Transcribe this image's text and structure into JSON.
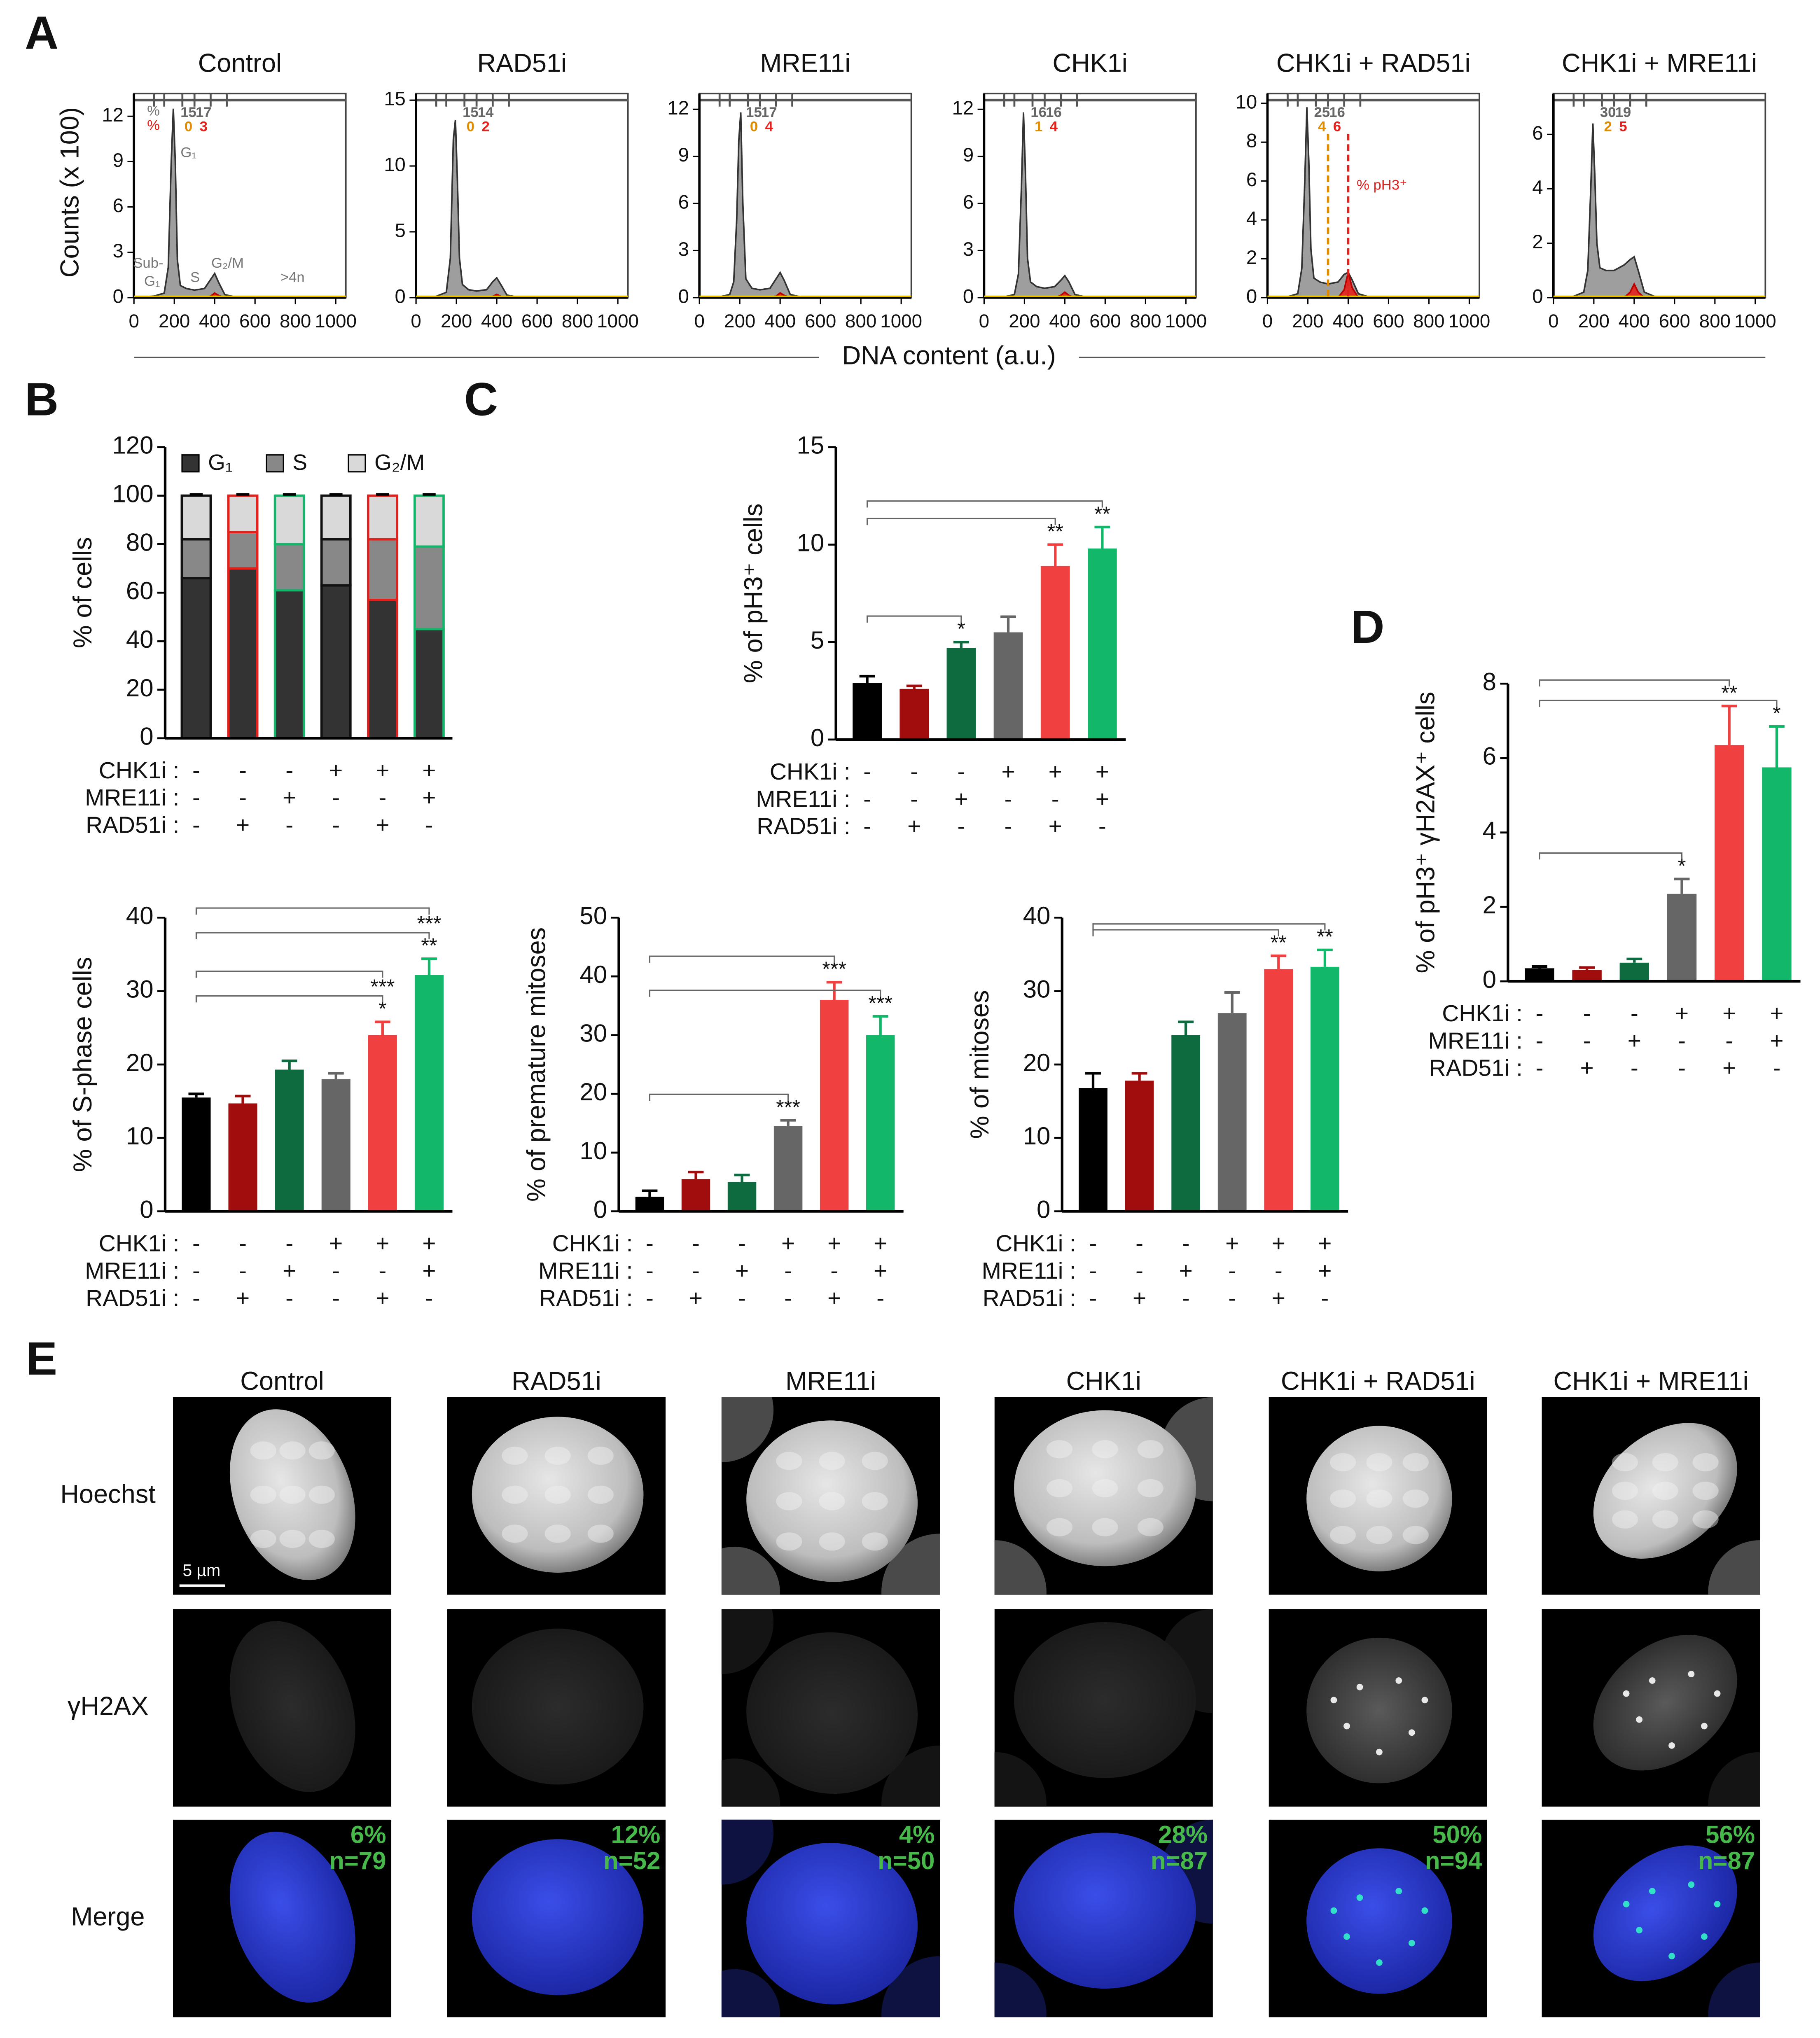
{
  "panel_labels": [
    "A",
    "B",
    "C",
    "D",
    "E"
  ],
  "chart_data": [
    {
      "type": "area",
      "title": "Control",
      "ylabel": "Counts (x 100)",
      "xlabel": "DNA content (a.u.)",
      "x": [
        0,
        100,
        150,
        170,
        185,
        195,
        205,
        215,
        230,
        260,
        300,
        350,
        380,
        400,
        420,
        450,
        500,
        600,
        800,
        1000
      ],
      "xlim": [
        0,
        1050
      ],
      "xticks": [
        0,
        200,
        400,
        600,
        800,
        1000
      ],
      "ylim": [
        0,
        13.5
      ],
      "yticks": [
        0,
        3,
        6,
        9,
        12
      ],
      "series": [
        {
          "color": "#9e9e9e",
          "values": [
            0,
            0.1,
            0.3,
            2,
            9,
            12.5,
            9,
            2.5,
            0.8,
            0.6,
            0.5,
            0.6,
            1.2,
            1.6,
            1,
            0.2,
            0.05,
            0.02,
            0.01,
            0
          ]
        },
        {
          "color": "#e3201b",
          "values": [
            0,
            0,
            0,
            0,
            0,
            0,
            0,
            0,
            0,
            0,
            0,
            0,
            0.1,
            0.3,
            0.15,
            0,
            0,
            0,
            0,
            0
          ]
        }
      ],
      "gate_labels": [
        15,
        17
      ],
      "gate_colored": [
        0,
        3
      ],
      "annotations": [
        "%",
        "%",
        "G₁",
        "Sub-",
        "G₁",
        "S",
        "G₂/M",
        ">4n"
      ]
    },
    {
      "type": "area",
      "title": "RAD51i",
      "x": [
        0,
        100,
        150,
        170,
        185,
        195,
        205,
        215,
        230,
        260,
        300,
        350,
        380,
        400,
        420,
        450,
        500,
        600,
        800,
        1000
      ],
      "xlim": [
        0,
        1050
      ],
      "xticks": [
        0,
        200,
        400,
        600,
        800,
        1000
      ],
      "ylim": [
        0,
        15.5
      ],
      "yticks": [
        0,
        5,
        10,
        15
      ],
      "series": [
        {
          "color": "#9e9e9e",
          "values": [
            0,
            0.1,
            0.4,
            3,
            12,
            13.5,
            9,
            3,
            1,
            0.6,
            0.5,
            0.6,
            1.2,
            1.5,
            1,
            0.2,
            0.05,
            0.02,
            0.01,
            0
          ]
        },
        {
          "color": "#e3201b",
          "values": [
            0,
            0,
            0,
            0,
            0,
            0,
            0,
            0,
            0,
            0,
            0,
            0,
            0.1,
            0.25,
            0.1,
            0,
            0,
            0,
            0,
            0
          ]
        }
      ],
      "gate_labels": [
        15,
        14
      ],
      "gate_colored": [
        0,
        2
      ]
    },
    {
      "type": "area",
      "title": "MRE11i",
      "x": [
        0,
        100,
        150,
        170,
        185,
        195,
        205,
        215,
        230,
        260,
        300,
        350,
        380,
        400,
        420,
        450,
        500,
        600,
        800,
        1000
      ],
      "xlim": [
        0,
        1050
      ],
      "xticks": [
        0,
        200,
        400,
        600,
        800,
        1000
      ],
      "ylim": [
        0,
        13
      ],
      "yticks": [
        0,
        3,
        6,
        9,
        12
      ],
      "series": [
        {
          "color": "#9e9e9e",
          "values": [
            0,
            0.05,
            0.2,
            1,
            5,
            10,
            11.8,
            6,
            1.2,
            0.6,
            0.5,
            0.6,
            1.2,
            1.6,
            1.1,
            0.2,
            0.05,
            0.02,
            0.01,
            0
          ]
        },
        {
          "color": "#e3201b",
          "values": [
            0,
            0,
            0,
            0,
            0,
            0,
            0,
            0,
            0,
            0,
            0,
            0,
            0.1,
            0.3,
            0.15,
            0,
            0,
            0,
            0,
            0
          ]
        }
      ],
      "gate_labels": [
        15,
        17
      ],
      "gate_colored": [
        0,
        4
      ]
    },
    {
      "type": "area",
      "title": "CHK1i",
      "x": [
        0,
        100,
        150,
        170,
        185,
        195,
        205,
        215,
        230,
        260,
        300,
        350,
        380,
        400,
        420,
        450,
        500,
        600,
        800,
        1000
      ],
      "xlim": [
        0,
        1050
      ],
      "xticks": [
        0,
        200,
        400,
        600,
        800,
        1000
      ],
      "ylim": [
        0,
        13
      ],
      "yticks": [
        0,
        3,
        6,
        9,
        12
      ],
      "series": [
        {
          "color": "#9e9e9e",
          "values": [
            0,
            0.05,
            0.2,
            1.5,
            7,
            11.8,
            8,
            2.5,
            1,
            0.7,
            0.6,
            0.7,
            1.1,
            1.4,
            1,
            0.2,
            0.05,
            0.02,
            0.01,
            0
          ]
        },
        {
          "color": "#e3201b",
          "values": [
            0,
            0,
            0,
            0,
            0,
            0,
            0,
            0,
            0,
            0,
            0,
            0,
            0.15,
            0.35,
            0.15,
            0,
            0,
            0,
            0,
            0
          ]
        }
      ],
      "gate_labels": [
        16,
        16
      ],
      "gate_colored": [
        1,
        4
      ]
    },
    {
      "type": "area",
      "title": "CHK1i + RAD51i",
      "x": [
        0,
        100,
        150,
        170,
        185,
        195,
        205,
        215,
        230,
        260,
        300,
        350,
        380,
        400,
        420,
        450,
        500,
        600,
        800,
        1000
      ],
      "xlim": [
        0,
        1050
      ],
      "xticks": [
        0,
        200,
        400,
        600,
        800,
        1000
      ],
      "ylim": [
        0,
        10.5
      ],
      "yticks": [
        0,
        2,
        4,
        6,
        8,
        10
      ],
      "series": [
        {
          "color": "#9e9e9e",
          "values": [
            0,
            0.05,
            0.2,
            1.5,
            6,
            9.8,
            7,
            2.5,
            1,
            0.8,
            0.7,
            0.8,
            1.2,
            1.3,
            0.9,
            0.2,
            0.05,
            0.02,
            0.01,
            0
          ]
        },
        {
          "color": "#e3201b",
          "values": [
            0,
            0,
            0,
            0,
            0,
            0,
            0,
            0,
            0,
            0,
            0,
            0,
            0.4,
            1.3,
            0.5,
            0,
            0,
            0,
            0,
            0
          ]
        }
      ],
      "gate_labels": [
        25,
        16
      ],
      "gate_colored": [
        4,
        6
      ],
      "annotations": [
        "% pH3⁺"
      ]
    },
    {
      "type": "area",
      "title": "CHK1i + MRE11i",
      "x": [
        0,
        100,
        150,
        170,
        185,
        195,
        205,
        215,
        230,
        260,
        300,
        350,
        380,
        400,
        420,
        450,
        500,
        600,
        800,
        1000
      ],
      "xlim": [
        0,
        1050
      ],
      "xticks": [
        0,
        200,
        400,
        600,
        800,
        1000
      ],
      "ylim": [
        0,
        7.5
      ],
      "yticks": [
        0,
        2,
        4,
        6
      ],
      "series": [
        {
          "color": "#9e9e9e",
          "values": [
            0,
            0.05,
            0.2,
            1,
            4,
            6.4,
            4.5,
            2,
            1.1,
            1,
            1,
            1.2,
            1.4,
            1.5,
            1,
            0.2,
            0.05,
            0.02,
            0.01,
            0
          ]
        },
        {
          "color": "#e3201b",
          "values": [
            0,
            0,
            0,
            0,
            0,
            0,
            0,
            0,
            0,
            0,
            0,
            0,
            0.2,
            0.5,
            0.2,
            0,
            0,
            0,
            0,
            0
          ]
        }
      ],
      "gate_labels": [
        30,
        19
      ],
      "gate_colored": [
        2,
        5
      ]
    },
    {
      "type": "stacked_bar",
      "ylabel": "% of cells",
      "ylim": [
        0,
        120
      ],
      "yticks": [
        0,
        20,
        40,
        60,
        80,
        100,
        120
      ],
      "outline_colors": [
        "#111111",
        "#e3201b",
        "#12b76a",
        "#111111",
        "#e3201b",
        "#12b76a"
      ],
      "series": [
        {
          "name": "G₁",
          "color": "#333333",
          "values": [
            66,
            70,
            61,
            63,
            57,
            45
          ],
          "errors": [
            1,
            1,
            1,
            1.5,
            1.5,
            2
          ]
        },
        {
          "name": "S",
          "color": "#888888",
          "values": [
            16,
            15,
            19,
            19,
            25,
            34
          ],
          "errors": [
            1,
            1.5,
            1,
            1,
            1.5,
            2
          ]
        },
        {
          "name": "G₂/M",
          "color": "#d9d9d9",
          "values": [
            18,
            15,
            20,
            18,
            18,
            21
          ],
          "errors": [
            0.5,
            0.5,
            0.5,
            0.5,
            0.5,
            0.5
          ]
        }
      ],
      "conditions": [
        {
          "label": "CHK1i :",
          "signs": [
            "-",
            "-",
            "-",
            "+",
            "+",
            "+"
          ]
        },
        {
          "label": "MRE11i :",
          "signs": [
            "-",
            "-",
            "+",
            "-",
            "-",
            "+"
          ]
        },
        {
          "label": "RAD51i :",
          "signs": [
            "-",
            "+",
            "-",
            "-",
            "+",
            "-"
          ]
        }
      ]
    },
    {
      "type": "bar",
      "ylabel": "% of pH3⁺ cells",
      "ylim": [
        0,
        15
      ],
      "yticks": [
        0,
        5,
        10,
        15
      ],
      "colors": [
        "#000000",
        "#a10d0d",
        "#0e6b3f",
        "#666666",
        "#f0403f",
        "#12b76a"
      ],
      "values": [
        2.9,
        2.6,
        4.7,
        5.5,
        8.9,
        9.8
      ],
      "errors": [
        0.35,
        0.15,
        0.3,
        0.8,
        1.1,
        1.1
      ],
      "stars": [
        [],
        [],
        [
          "*"
        ],
        [],
        [
          "**"
        ],
        [
          "**"
        ]
      ],
      "conditions": [
        {
          "label": "CHK1i :",
          "signs": [
            "-",
            "-",
            "-",
            "+",
            "+",
            "+"
          ]
        },
        {
          "label": "MRE11i :",
          "signs": [
            "-",
            "-",
            "+",
            "-",
            "-",
            "+"
          ]
        },
        {
          "label": "RAD51i :",
          "signs": [
            "-",
            "+",
            "-",
            "-",
            "+",
            "-"
          ]
        }
      ]
    },
    {
      "type": "bar",
      "ylabel": "% of pH3⁺ γH2AX⁺ cells",
      "ylim": [
        0,
        8
      ],
      "yticks": [
        0,
        2,
        4,
        6,
        8
      ],
      "colors": [
        "#000000",
        "#a10d0d",
        "#0e6b3f",
        "#666666",
        "#f0403f",
        "#12b76a"
      ],
      "values": [
        0.35,
        0.3,
        0.5,
        2.35,
        6.35,
        5.75
      ],
      "errors": [
        0.05,
        0.07,
        0.1,
        0.4,
        1.05,
        1.1
      ],
      "stars": [
        [],
        [],
        [],
        [
          "*"
        ],
        [
          "**"
        ],
        [
          "*"
        ]
      ],
      "conditions": [
        {
          "label": "CHK1i :",
          "signs": [
            "-",
            "-",
            "-",
            "+",
            "+",
            "+"
          ]
        },
        {
          "label": "MRE11i :",
          "signs": [
            "-",
            "-",
            "+",
            "-",
            "-",
            "+"
          ]
        },
        {
          "label": "RAD51i :",
          "signs": [
            "-",
            "+",
            "-",
            "-",
            "+",
            "-"
          ]
        }
      ]
    },
    {
      "type": "bar",
      "ylabel": "% of S-phase cells",
      "ylim": [
        0,
        40
      ],
      "yticks": [
        0,
        10,
        20,
        30,
        40
      ],
      "colors": [
        "#000000",
        "#a10d0d",
        "#0e6b3f",
        "#666666",
        "#f0403f",
        "#12b76a"
      ],
      "values": [
        15.5,
        14.7,
        19.3,
        18,
        24,
        32.2
      ],
      "errors": [
        0.5,
        1,
        1.2,
        0.8,
        1.8,
        2.2
      ],
      "stars": [
        [],
        [],
        [],
        [],
        [
          "***",
          "*"
        ],
        [
          "***",
          "**"
        ]
      ],
      "conditions": [
        {
          "label": "CHK1i :",
          "signs": [
            "-",
            "-",
            "-",
            "+",
            "+",
            "+"
          ]
        },
        {
          "label": "MRE11i :",
          "signs": [
            "-",
            "-",
            "+",
            "-",
            "-",
            "+"
          ]
        },
        {
          "label": "RAD51i :",
          "signs": [
            "-",
            "+",
            "-",
            "-",
            "+",
            "-"
          ]
        }
      ]
    },
    {
      "type": "bar",
      "ylabel": "% of premature mitoses",
      "ylim": [
        0,
        50
      ],
      "yticks": [
        0,
        10,
        20,
        30,
        40,
        50
      ],
      "colors": [
        "#000000",
        "#a10d0d",
        "#0e6b3f",
        "#666666",
        "#f0403f",
        "#12b76a"
      ],
      "values": [
        2.5,
        5.5,
        5,
        14.5,
        36,
        30
      ],
      "errors": [
        1,
        1.2,
        1.2,
        1,
        3,
        3.2
      ],
      "stars": [
        [],
        [],
        [],
        [
          "***"
        ],
        [
          "***"
        ],
        [
          "***"
        ]
      ],
      "conditions": [
        {
          "label": "CHK1i :",
          "signs": [
            "-",
            "-",
            "-",
            "+",
            "+",
            "+"
          ]
        },
        {
          "label": "MRE11i :",
          "signs": [
            "-",
            "-",
            "+",
            "-",
            "-",
            "+"
          ]
        },
        {
          "label": "RAD51i :",
          "signs": [
            "-",
            "+",
            "-",
            "-",
            "+",
            "-"
          ]
        }
      ]
    },
    {
      "type": "bar",
      "ylabel": "% of mitoses",
      "ylim": [
        0,
        40
      ],
      "yticks": [
        0,
        10,
        20,
        30,
        40
      ],
      "colors": [
        "#000000",
        "#a10d0d",
        "#0e6b3f",
        "#666666",
        "#f0403f",
        "#12b76a"
      ],
      "values": [
        16.8,
        17.8,
        24,
        27,
        33,
        33.3
      ],
      "errors": [
        2,
        1,
        1.8,
        2.8,
        1.8,
        2.3
      ],
      "stars": [
        [],
        [],
        [],
        [],
        [
          "**"
        ],
        [
          "**"
        ]
      ],
      "conditions": [
        {
          "label": "CHK1i :",
          "signs": [
            "-",
            "-",
            "-",
            "+",
            "+",
            "+"
          ]
        },
        {
          "label": "MRE11i :",
          "signs": [
            "-",
            "-",
            "+",
            "-",
            "-",
            "+"
          ]
        },
        {
          "label": "RAD51i :",
          "signs": [
            "-",
            "+",
            "-",
            "-",
            "+",
            "-"
          ]
        }
      ]
    }
  ],
  "panel_e": {
    "columns": [
      "Control",
      "RAD51i",
      "MRE11i",
      "CHK1i",
      "CHK1i + RAD51i",
      "CHK1i + MRE11i"
    ],
    "rows": [
      "Hoechst",
      "γH2AX",
      "Merge"
    ],
    "scale_bar": "5 µm",
    "percent": [
      "6%",
      "12%",
      "4%",
      "28%",
      "50%",
      "56%"
    ],
    "n": [
      "n=79",
      "n=52",
      "n=50",
      "n=87",
      "n=94",
      "n=87"
    ]
  }
}
